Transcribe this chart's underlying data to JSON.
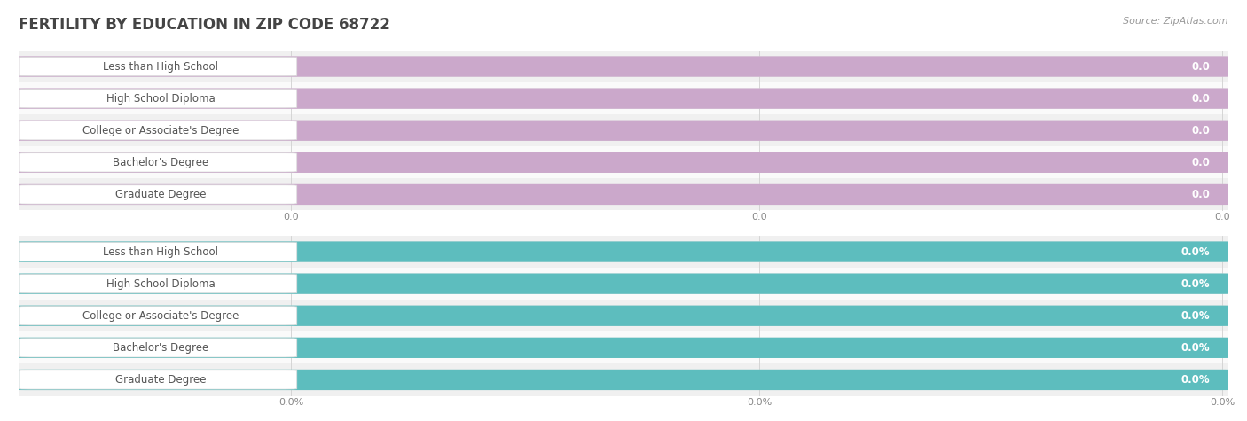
{
  "title": "FERTILITY BY EDUCATION IN ZIP CODE 68722",
  "source_text": "Source: ZipAtlas.com",
  "categories": [
    "Less than High School",
    "High School Diploma",
    "College or Associate's Degree",
    "Bachelor's Degree",
    "Graduate Degree"
  ],
  "values_top": [
    0.0,
    0.0,
    0.0,
    0.0,
    0.0
  ],
  "values_bottom": [
    0.0,
    0.0,
    0.0,
    0.0,
    0.0
  ],
  "bar_color_top": "#cba8cb",
  "bar_color_bottom": "#5dbdbe",
  "bar_bg_color": "#e2e2e2",
  "row_bg_even": "#f0f0f0",
  "row_bg_odd": "#fafafa",
  "title_fontsize": 12,
  "label_fontsize": 8.5,
  "value_fontsize": 8.5,
  "source_fontsize": 8,
  "top_tick_labels": [
    "0.0",
    "0.0",
    "0.0"
  ],
  "bottom_tick_labels": [
    "0.0%",
    "0.0%",
    "0.0%"
  ],
  "grid_color": "#d0d0d0",
  "text_color_label": "#555555",
  "text_color_value": "#ffffff",
  "title_color": "#444444",
  "source_color": "#999999"
}
